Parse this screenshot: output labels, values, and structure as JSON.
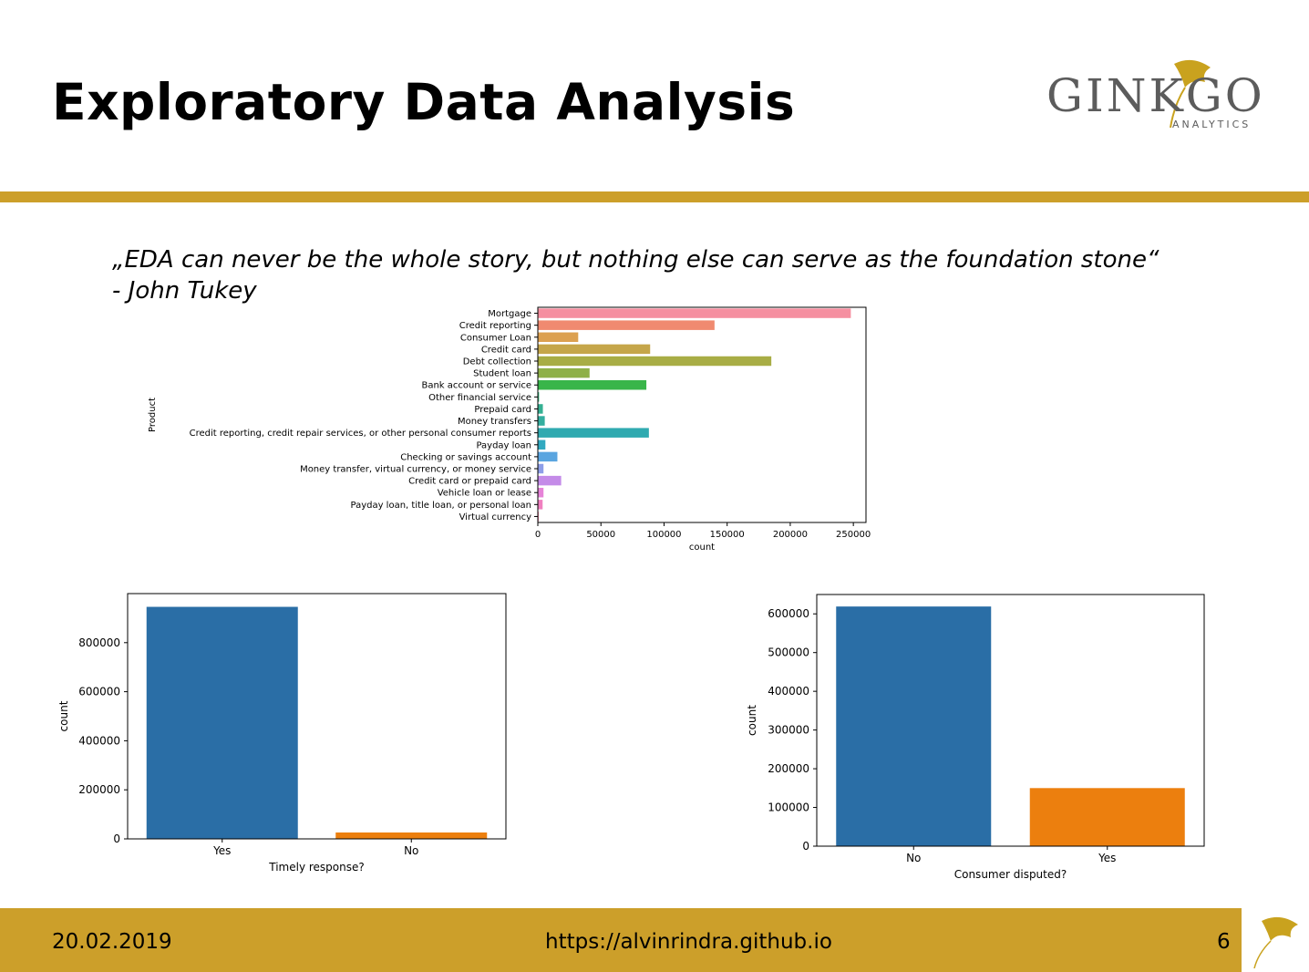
{
  "slide": {
    "title": "Exploratory Data Analysis",
    "quote_line1": "„EDA can never be the whole story, but nothing else can serve as the foundation stone“",
    "quote_line2": "- John Tukey",
    "accent_color": "#cc9f2a"
  },
  "logo": {
    "word": "GINKGO",
    "sub": "ANALYTICS",
    "leaf_color": "#c9a21e",
    "text_color": "#5c5c5c"
  },
  "footer": {
    "date": "20.02.2019",
    "url": "https://alvinrindra.github.io",
    "page": "6"
  },
  "chart_data": [
    {
      "type": "bar",
      "orientation": "horizontal",
      "categories": [
        "Mortgage",
        "Credit reporting",
        "Consumer Loan",
        "Credit card",
        "Debt collection",
        "Student loan",
        "Bank account or service",
        "Other financial service",
        "Prepaid card",
        "Money transfers",
        "Credit reporting, credit repair services, or other personal consumer reports",
        "Payday loan",
        "Checking or savings account",
        "Money transfer, virtual currency, or money service",
        "Credit card or prepaid card",
        "Vehicle loan or lease",
        "Payday loan, title loan, or personal loan",
        "Virtual currency"
      ],
      "values": [
        248000,
        140000,
        32000,
        89000,
        185000,
        41000,
        86000,
        1000,
        4000,
        5500,
        88000,
        6000,
        15500,
        4500,
        18500,
        4500,
        3800,
        20
      ],
      "colors": [
        "#f58fa0",
        "#f08a70",
        "#dca050",
        "#c5a64a",
        "#a8ad45",
        "#8eb048",
        "#39b54a",
        "#36b57c",
        "#35b092",
        "#33ae9f",
        "#30aab0",
        "#31a9c0",
        "#5aa5e0",
        "#8e9ee8",
        "#c48be8",
        "#e683d8",
        "#f080c0",
        "#f58aa8"
      ],
      "xlabel": "count",
      "ylabel": "Product",
      "xlim": [
        0,
        260000
      ],
      "xticks": [
        0,
        50000,
        100000,
        150000,
        200000,
        250000
      ]
    },
    {
      "type": "bar",
      "categories": [
        "Yes",
        "No"
      ],
      "values": [
        946000,
        26000
      ],
      "colors": [
        "#2a6ea6",
        "#ec7f0e"
      ],
      "xlabel": "Timely response?",
      "ylabel": "count",
      "ylim": [
        0,
        1000000
      ],
      "yticks": [
        0,
        200000,
        400000,
        600000,
        800000
      ]
    },
    {
      "type": "bar",
      "categories": [
        "No",
        "Yes"
      ],
      "values": [
        619000,
        150000
      ],
      "colors": [
        "#2a6ea6",
        "#ec7f0e"
      ],
      "xlabel": "Consumer disputed?",
      "ylabel": "count",
      "ylim": [
        0,
        650000
      ],
      "yticks": [
        0,
        100000,
        200000,
        300000,
        400000,
        500000,
        600000
      ]
    }
  ]
}
